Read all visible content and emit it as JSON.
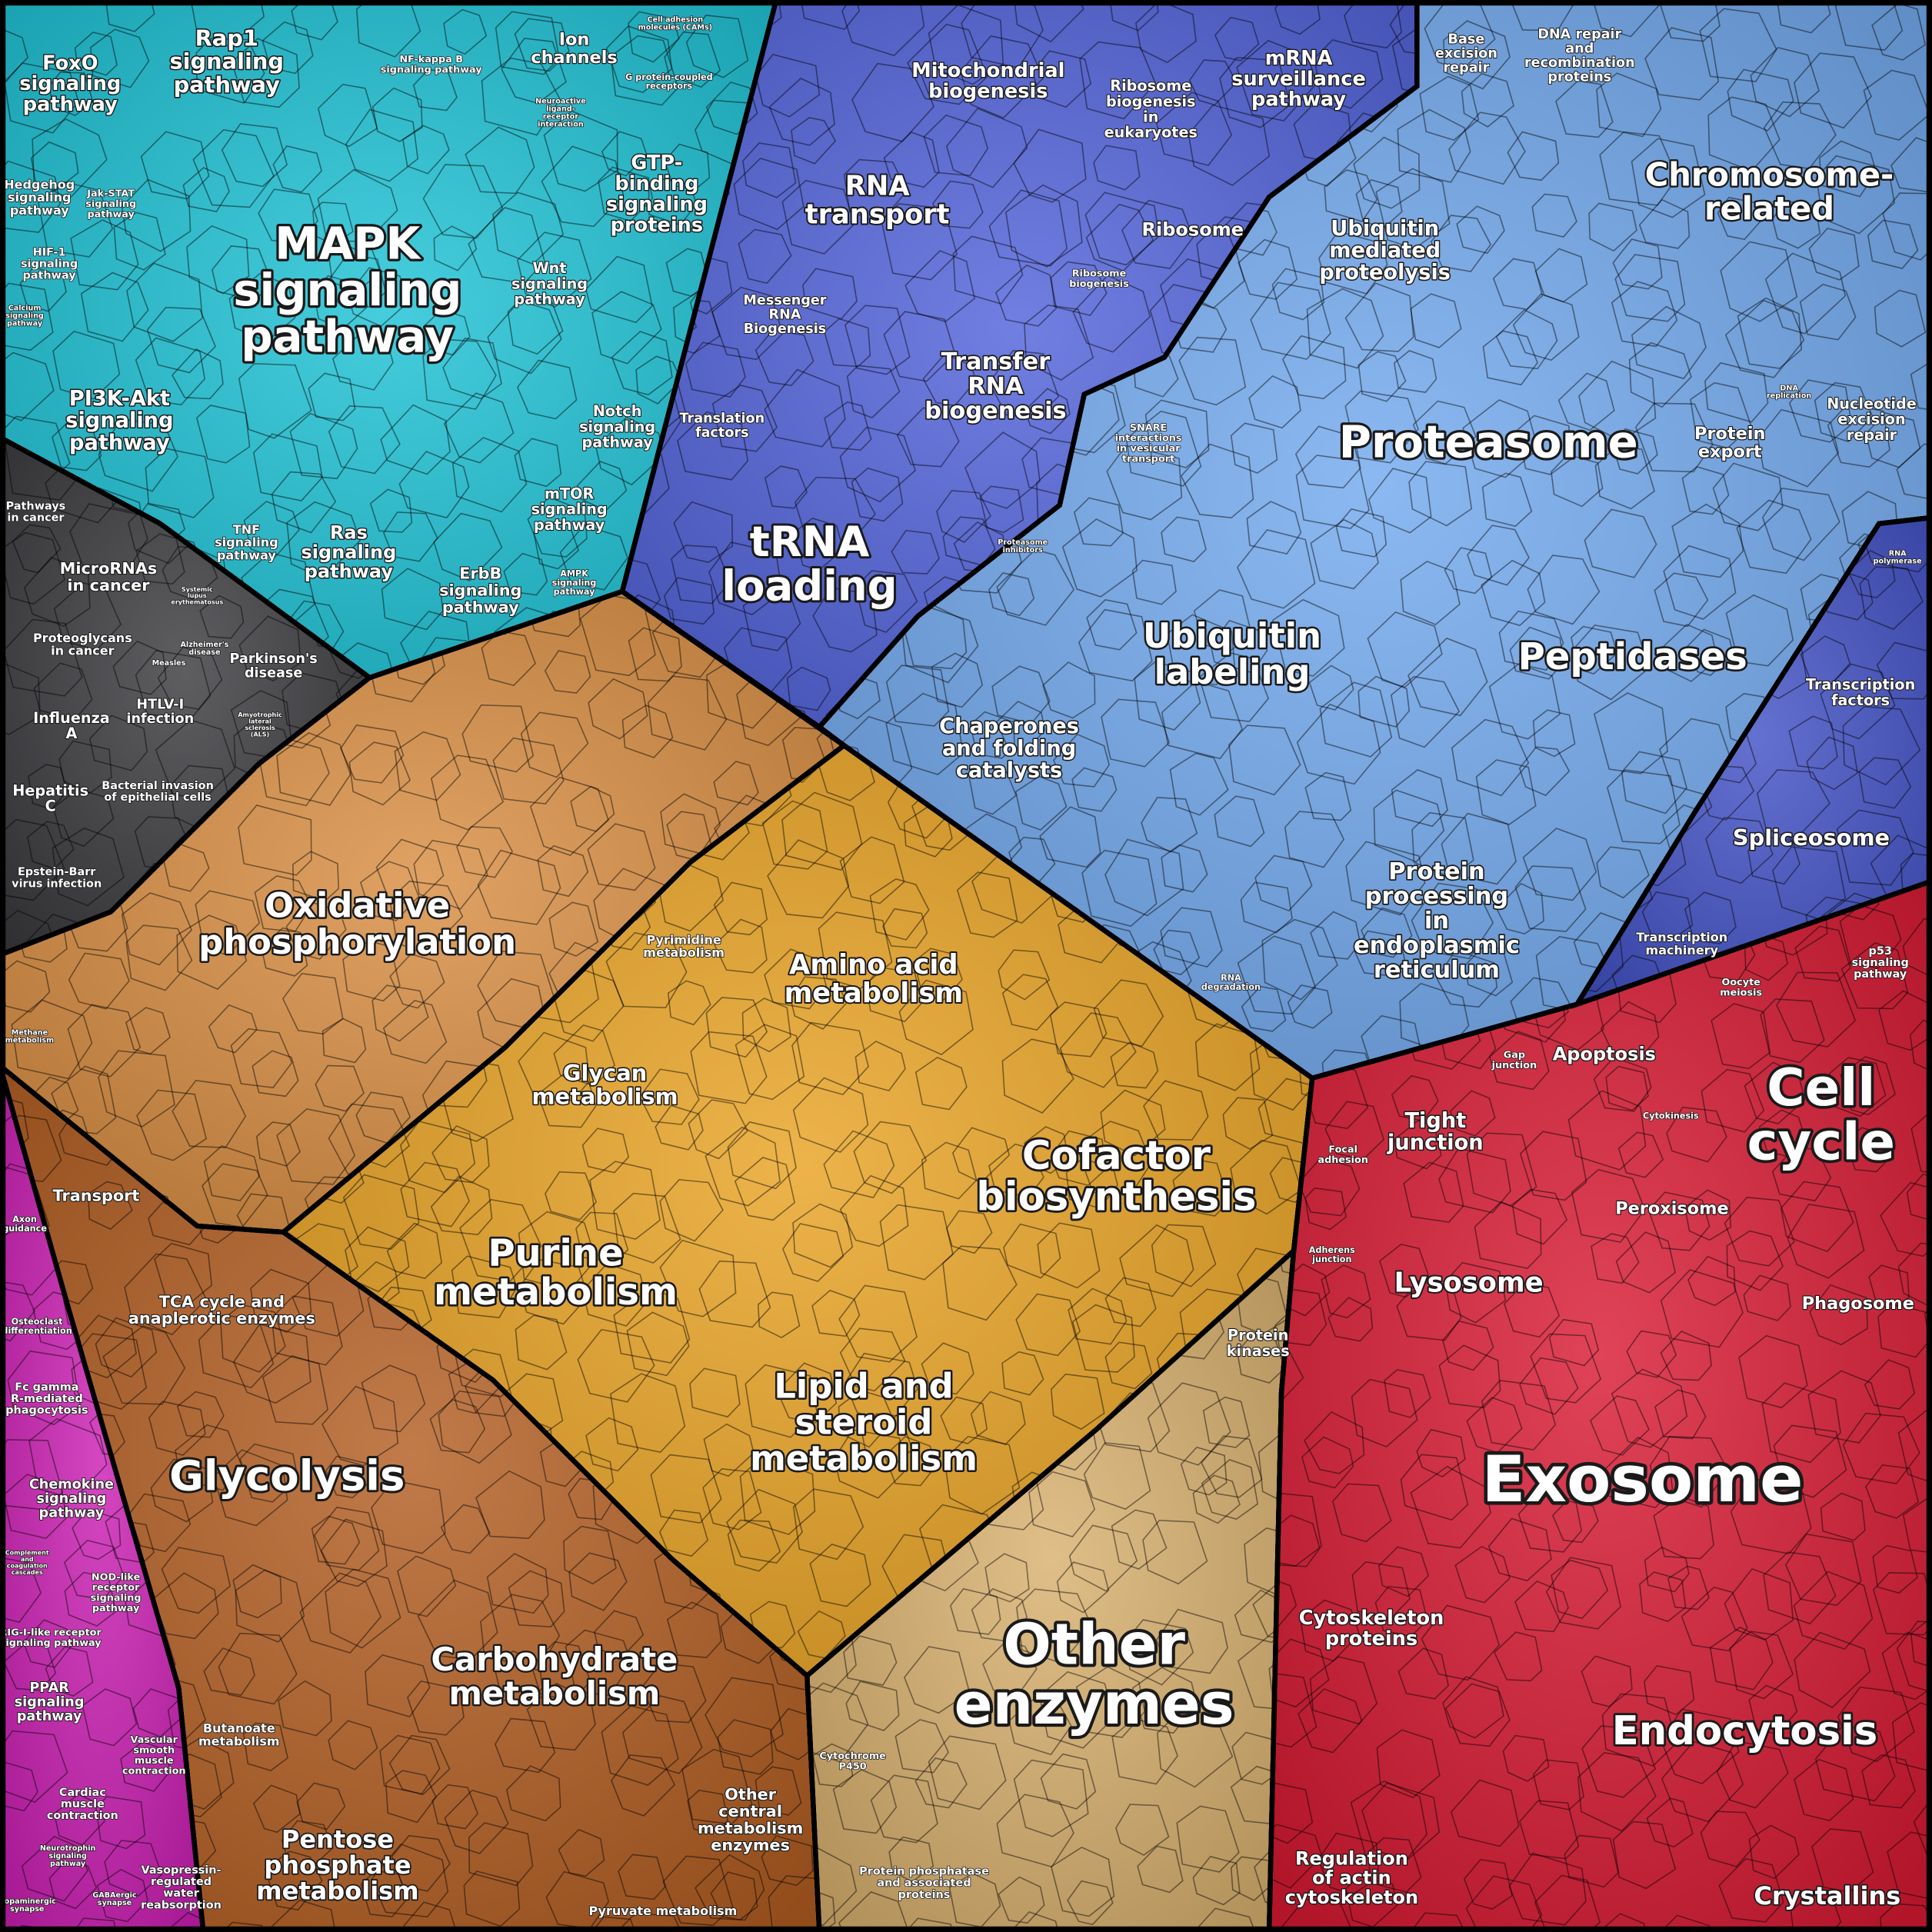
{
  "regions": [
    {
      "color": "#1ec3d6",
      "labels": [
        [
          "FoxO",
          "signaling",
          "pathway"
        ],
        [
          "Rap1",
          "signaling",
          "pathway"
        ],
        [
          "NF-kappa B",
          "signaling pathway"
        ],
        [
          "Ion",
          "channels"
        ],
        [
          "Cell adhesion",
          "molecules (CAMs)"
        ],
        [
          "G protein-coupled",
          "receptors"
        ],
        [
          "Hedgehog",
          "signaling",
          "pathway"
        ],
        [
          "Jak-STAT",
          "signaling",
          "pathway"
        ],
        [
          "MAPK",
          "signaling",
          "pathway"
        ],
        [
          "Wnt",
          "signaling",
          "pathway"
        ],
        [
          "GTP-",
          "binding",
          "signaling",
          "proteins"
        ],
        [
          "Neuroactive",
          "ligand-",
          "receptor",
          "interaction"
        ],
        [
          "HIF-1",
          "signaling",
          "pathway"
        ],
        [
          "Calcium",
          "signaling",
          "pathway"
        ],
        [
          "PI3K-Akt",
          "signaling",
          "pathway"
        ],
        [
          "Notch",
          "signaling",
          "pathway"
        ],
        [
          "mTOR",
          "signaling",
          "pathway"
        ],
        [
          "TNF",
          "signaling",
          "pathway"
        ],
        [
          "Ras",
          "signaling",
          "pathway"
        ],
        [
          "ErbB",
          "signaling",
          "pathway"
        ],
        [
          "AMPK",
          "signaling",
          "pathway"
        ]
      ]
    },
    {
      "color": "#3b3a3e",
      "labels": [
        [
          "Pathways",
          "in cancer"
        ],
        [
          "MicroRNAs",
          "in cancer"
        ],
        [
          "Systemic",
          "lupus",
          "erythematosus"
        ],
        [
          "Proteoglycans",
          "in cancer"
        ],
        [
          "Parkinson's",
          "disease"
        ],
        [
          "Alzheimer's",
          "disease"
        ],
        [
          "Measles"
        ],
        [
          "HTLV-I",
          "infection"
        ],
        [
          "Amyotrophic",
          "lateral",
          "sclerosis",
          "(ALS)"
        ],
        [
          "Influenza",
          "A"
        ],
        [
          "Hepatitis",
          "C"
        ],
        [
          "Bacterial invasion",
          "of epithelial cells"
        ],
        [
          "Epstein-Barr",
          "virus infection"
        ]
      ]
    },
    {
      "color": "#d98e42",
      "labels": [
        [
          "Oxidative",
          "phosphorylation"
        ],
        [
          "Methane",
          "metabolism"
        ]
      ]
    },
    {
      "color": "#e9a323",
      "labels": [
        [
          "Pyrimidine",
          "metabolism"
        ],
        [
          "Amino acid",
          "metabolism"
        ],
        [
          "Glycan",
          "metabolism"
        ],
        [
          "Cofactor",
          "biosynthesis"
        ],
        [
          "Purine",
          "metabolism"
        ],
        [
          "Protein",
          "kinases"
        ],
        [
          "Lipid and",
          "steroid",
          "metabolism"
        ]
      ]
    },
    {
      "color": "#b35e22",
      "labels": [
        [
          "Transport"
        ],
        [
          "TCA cycle and",
          "anaplerotic enzymes"
        ],
        [
          "Glycolysis"
        ],
        [
          "Carbohydrate",
          "metabolism"
        ],
        [
          "Butanoate",
          "metabolism"
        ],
        [
          "Pentose",
          "phosphate",
          "metabolism"
        ],
        [
          "Other",
          "central",
          "metabolism",
          "enzymes"
        ],
        [
          "Pyruvate metabolism"
        ]
      ]
    },
    {
      "color": "#d9b06e",
      "labels": [
        [
          "Other",
          "enzymes"
        ],
        [
          "Cytochrome",
          "P450"
        ],
        [
          "Protein phosphatase",
          "and associated",
          "proteins"
        ]
      ]
    },
    {
      "color": "#cc1fb4",
      "labels": [
        [
          "Axon",
          "guidance"
        ],
        [
          "Osteoclast",
          "differentiation"
        ],
        [
          "Fc gamma",
          "R-mediated",
          "phagocytosis"
        ],
        [
          "Chemokine",
          "signaling",
          "pathway"
        ],
        [
          "NOD-like",
          "receptor",
          "signaling",
          "pathway"
        ],
        [
          "RIG-I-like receptor",
          "signaling pathway"
        ],
        [
          "Complement",
          "and",
          "coagulation",
          "cascades"
        ],
        [
          "PPAR",
          "signaling",
          "pathway"
        ],
        [
          "Vascular",
          "smooth",
          "muscle",
          "contraction"
        ],
        [
          "Cardiac",
          "muscle",
          "contraction"
        ],
        [
          "Neurotrophin",
          "signaling",
          "pathway"
        ],
        [
          "Vasopressin-",
          "regulated",
          "water",
          "reabsorption"
        ],
        [
          "Dopaminergic",
          "synapse"
        ],
        [
          "GABAergic",
          "synapse"
        ]
      ]
    },
    {
      "color": "#5263db",
      "labels": [
        [
          "Mitochondrial",
          "biogenesis"
        ],
        [
          "Ribosome",
          "biogenesis",
          "in",
          "eukaryotes"
        ],
        [
          "mRNA",
          "surveillance",
          "pathway"
        ],
        [
          "RNA",
          "transport"
        ],
        [
          "Ribosome"
        ],
        [
          "Ribosome",
          "biogenesis"
        ],
        [
          "Messenger",
          "RNA",
          "Biogenesis"
        ],
        [
          "Transfer",
          "RNA",
          "biogenesis"
        ],
        [
          "Translation",
          "factors"
        ],
        [
          "tRNA",
          "loading"
        ]
      ]
    },
    {
      "color": "#72a9ee",
      "labels": [
        [
          "Base",
          "excision",
          "repair"
        ],
        [
          "DNA repair",
          "and",
          "recombination",
          "proteins"
        ],
        [
          "Chromosome-",
          "related"
        ],
        [
          "Ubiquitin",
          "mediated",
          "proteolysis"
        ],
        [
          "Proteasome"
        ],
        [
          "SNARE",
          "interactions",
          "in vesicular",
          "transport"
        ],
        [
          "Protein",
          "export"
        ],
        [
          "DNA",
          "replication"
        ],
        [
          "Nucleotide",
          "excision",
          "repair"
        ],
        [
          "Proteasome",
          "inhibitors"
        ],
        [
          "Ubiquitin",
          "labeling"
        ],
        [
          "Peptidases"
        ],
        [
          "Chaperones",
          "and folding",
          "catalysts"
        ],
        [
          "Protein",
          "processing",
          "in",
          "endoplasmic",
          "reticulum"
        ],
        [
          "RNA",
          "degradation"
        ]
      ]
    },
    {
      "color": "#4352c6",
      "labels": [
        [
          "RNA",
          "polymerase"
        ],
        [
          "Transcription",
          "factors"
        ],
        [
          "Spliceosome"
        ],
        [
          "Transcription",
          "machinery"
        ]
      ]
    },
    {
      "color": "#d91a33",
      "labels": [
        [
          "p53",
          "signaling",
          "pathway"
        ],
        [
          "Oocyte",
          "meiosis"
        ],
        [
          "Gap",
          "junction"
        ],
        [
          "Apoptosis"
        ],
        [
          "Cell",
          "cycle"
        ],
        [
          "Cytokinesis"
        ],
        [
          "Focal",
          "adhesion"
        ],
        [
          "Tight",
          "junction"
        ],
        [
          "Peroxisome"
        ],
        [
          "Adherens",
          "junction"
        ],
        [
          "Lysosome"
        ],
        [
          "Phagosome"
        ],
        [
          "Exosome"
        ],
        [
          "Cytoskeleton",
          "proteins"
        ],
        [
          "Endocytosis"
        ],
        [
          "Regulation",
          "of actin",
          "cytoskeleton"
        ],
        [
          "Crystallins"
        ]
      ]
    }
  ]
}
